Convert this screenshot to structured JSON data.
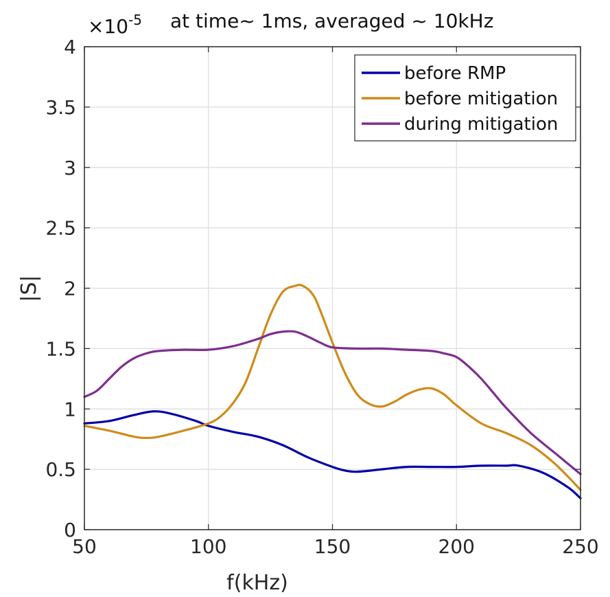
{
  "chart_data": {
    "type": "line",
    "title": "at time~ 1ms, averaged ~ 10kHz",
    "exponent_base": "×10",
    "exponent_power": "-5",
    "xlabel": "f(kHz)",
    "ylabel": "|S|",
    "xlim": [
      50,
      250
    ],
    "ylim": [
      0,
      4
    ],
    "xticks": [
      50,
      100,
      150,
      200,
      250
    ],
    "xtick_labels": [
      "50",
      "100",
      "150",
      "200",
      "250"
    ],
    "yticks": [
      0,
      0.5,
      1,
      1.5,
      2,
      2.5,
      3,
      3.5,
      4
    ],
    "ytick_labels": [
      "0",
      "0.5",
      "1",
      "1.5",
      "2",
      "2.5",
      "3",
      "3.5",
      "4"
    ],
    "grid": true,
    "legend_position": "top-right",
    "series": [
      {
        "name": "before RMP",
        "color": "#0000a8",
        "x": [
          50,
          60,
          70,
          78,
          85,
          95,
          100,
          110,
          120,
          130,
          140,
          150,
          155,
          160,
          170,
          180,
          190,
          200,
          210,
          220,
          225,
          235,
          245,
          250
        ],
        "y": [
          0.88,
          0.9,
          0.95,
          0.98,
          0.96,
          0.9,
          0.86,
          0.81,
          0.77,
          0.7,
          0.6,
          0.52,
          0.49,
          0.48,
          0.5,
          0.52,
          0.52,
          0.52,
          0.53,
          0.53,
          0.53,
          0.47,
          0.35,
          0.26
        ]
      },
      {
        "name": "before mitigation",
        "color": "#d08a1a",
        "x": [
          50,
          60,
          70,
          75,
          80,
          90,
          100,
          105,
          110,
          115,
          120,
          125,
          130,
          135,
          138,
          142,
          145,
          150,
          155,
          160,
          165,
          170,
          175,
          180,
          185,
          190,
          195,
          200,
          210,
          220,
          230,
          240,
          250
        ],
        "y": [
          0.86,
          0.82,
          0.77,
          0.76,
          0.77,
          0.82,
          0.88,
          0.94,
          1.05,
          1.22,
          1.5,
          1.78,
          1.97,
          2.02,
          2.02,
          1.95,
          1.82,
          1.55,
          1.3,
          1.12,
          1.04,
          1.02,
          1.06,
          1.12,
          1.16,
          1.17,
          1.12,
          1.03,
          0.88,
          0.8,
          0.7,
          0.54,
          0.33
        ]
      },
      {
        "name": "during mitigation",
        "color": "#7e2e8e",
        "x": [
          50,
          55,
          60,
          65,
          70,
          75,
          80,
          90,
          100,
          110,
          120,
          125,
          130,
          135,
          140,
          145,
          150,
          160,
          170,
          180,
          190,
          195,
          200,
          205,
          210,
          215,
          220,
          230,
          240,
          250
        ],
        "y": [
          1.1,
          1.15,
          1.25,
          1.35,
          1.42,
          1.46,
          1.48,
          1.49,
          1.49,
          1.52,
          1.58,
          1.62,
          1.64,
          1.64,
          1.6,
          1.55,
          1.51,
          1.5,
          1.5,
          1.49,
          1.48,
          1.46,
          1.43,
          1.35,
          1.25,
          1.13,
          1.01,
          0.8,
          0.63,
          0.46
        ]
      }
    ]
  }
}
